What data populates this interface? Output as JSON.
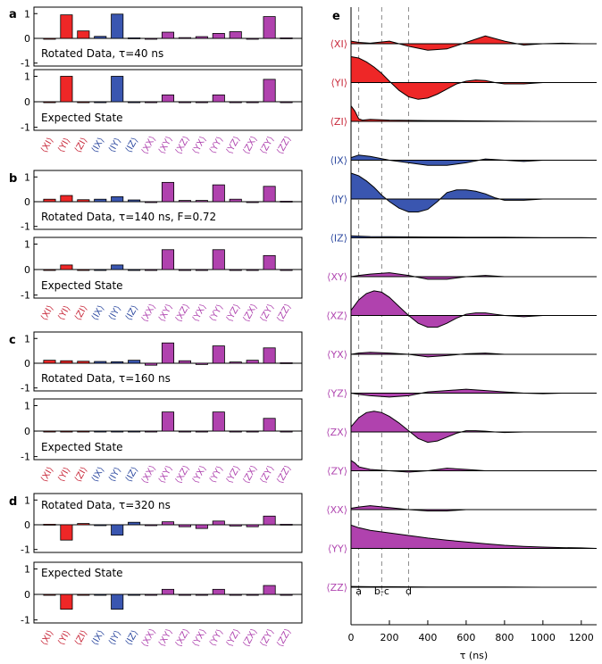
{
  "chart_data": [
    {
      "type": "bar",
      "panel": "a",
      "categories": [
        "⟨XI⟩",
        "⟨YI⟩",
        "⟨ZI⟩",
        "⟨IX⟩",
        "⟨IY⟩",
        "⟨IZ⟩",
        "⟨XX⟩",
        "⟨XY⟩",
        "⟨XZ⟩",
        "⟨YX⟩",
        "⟨YY⟩",
        "⟨YZ⟩",
        "⟨ZX⟩",
        "⟨ZY⟩",
        "⟨ZZ⟩"
      ],
      "ylim": [
        -1,
        1
      ],
      "yticks": [
        1,
        0,
        -1
      ],
      "series": [
        {
          "name": "Rotated Data, τ=40 ns",
          "values": [
            0.0,
            0.95,
            0.3,
            0.08,
            0.98,
            0.02,
            0.0,
            0.25,
            0.03,
            0.07,
            0.2,
            0.27,
            0.0,
            0.88,
            0.02
          ]
        },
        {
          "name": "Expected State",
          "values": [
            0,
            1.0,
            0,
            0,
            1.0,
            0,
            0,
            0.27,
            0,
            0,
            0.27,
            0,
            0,
            0.88,
            0
          ]
        }
      ]
    },
    {
      "type": "bar",
      "panel": "b",
      "categories": [
        "⟨XI⟩",
        "⟨YI⟩",
        "⟨ZI⟩",
        "⟨IX⟩",
        "⟨IY⟩",
        "⟨IZ⟩",
        "⟨XX⟩",
        "⟨XY⟩",
        "⟨XZ⟩",
        "⟨YX⟩",
        "⟨YY⟩",
        "⟨YZ⟩",
        "⟨ZX⟩",
        "⟨ZY⟩",
        "⟨ZZ⟩"
      ],
      "ylim": [
        -1,
        1
      ],
      "yticks": [
        1,
        0,
        -1
      ],
      "series": [
        {
          "name": "Rotated Data, τ=140 ns, F=0.72",
          "values": [
            0.1,
            0.25,
            0.08,
            0.1,
            0.2,
            0.07,
            0.0,
            0.78,
            0.05,
            0.05,
            0.68,
            0.1,
            0.0,
            0.62,
            0.02
          ]
        },
        {
          "name": "Expected State",
          "values": [
            0,
            0.18,
            0,
            0,
            0.18,
            0,
            0,
            0.78,
            0,
            0,
            0.78,
            0,
            0,
            0.55,
            0
          ]
        }
      ]
    },
    {
      "type": "bar",
      "panel": "c",
      "categories": [
        "⟨XI⟩",
        "⟨YI⟩",
        "⟨ZI⟩",
        "⟨IX⟩",
        "⟨IY⟩",
        "⟨IZ⟩",
        "⟨XX⟩",
        "⟨XY⟩",
        "⟨XZ⟩",
        "⟨YX⟩",
        "⟨YY⟩",
        "⟨YZ⟩",
        "⟨ZX⟩",
        "⟨ZY⟩",
        "⟨ZZ⟩"
      ],
      "ylim": [
        -1,
        1
      ],
      "yticks": [
        1,
        0,
        -1
      ],
      "series": [
        {
          "name": "Rotated Data, τ=160 ns",
          "values": [
            0.12,
            0.1,
            0.08,
            0.07,
            0.06,
            0.12,
            -0.08,
            0.82,
            0.1,
            -0.05,
            0.7,
            0.05,
            0.12,
            0.62,
            0.02
          ]
        },
        {
          "name": "Expected State",
          "values": [
            0,
            0,
            0,
            0,
            0,
            0,
            0,
            0.75,
            0,
            0,
            0.75,
            0,
            0,
            0.5,
            0
          ]
        }
      ]
    },
    {
      "type": "bar",
      "panel": "d",
      "categories": [
        "⟨XI⟩",
        "⟨YI⟩",
        "⟨ZI⟩",
        "⟨IX⟩",
        "⟨IY⟩",
        "⟨IZ⟩",
        "⟨XX⟩",
        "⟨XY⟩",
        "⟨XZ⟩",
        "⟨YX⟩",
        "⟨YY⟩",
        "⟨YZ⟩",
        "⟨ZX⟩",
        "⟨ZY⟩",
        "⟨ZZ⟩"
      ],
      "ylim": [
        -1,
        1
      ],
      "yticks": [
        1,
        0,
        -1
      ],
      "series": [
        {
          "name": "Rotated Data, τ=320 ns",
          "values": [
            0.02,
            -0.62,
            0.05,
            0.0,
            -0.42,
            0.1,
            0.0,
            0.12,
            -0.08,
            -0.15,
            0.15,
            -0.05,
            -0.08,
            0.35,
            0.02
          ]
        },
        {
          "name": "Expected State",
          "values": [
            0,
            -0.58,
            0,
            0,
            -0.58,
            0,
            0,
            0.2,
            0,
            0,
            0.2,
            0,
            0,
            0.35,
            0
          ]
        }
      ]
    },
    {
      "type": "area",
      "panel": "e",
      "xlabel": "τ (ns)",
      "xlim": [
        0,
        1280
      ],
      "xticks": [
        0,
        200,
        400,
        600,
        800,
        1000,
        1200
      ],
      "markers": [
        {
          "label": "a",
          "x": 40
        },
        {
          "label": "b-c",
          "x": 160
        },
        {
          "label": "d",
          "x": 300
        }
      ],
      "series": [
        {
          "name": "⟨XI⟩",
          "x": [
            0,
            40,
            100,
            200,
            300,
            400,
            500,
            600,
            700,
            800,
            900,
            1000,
            1100,
            1200,
            1280
          ],
          "y": [
            0.1,
            0.05,
            0.02,
            0.1,
            -0.1,
            -0.25,
            -0.2,
            0.05,
            0.3,
            0.1,
            -0.05,
            0.0,
            0.02,
            0.0,
            0.0
          ]
        },
        {
          "name": "⟨YI⟩",
          "x": [
            0,
            40,
            80,
            120,
            160,
            200,
            250,
            300,
            350,
            400,
            450,
            500,
            550,
            600,
            650,
            700,
            750,
            800,
            900,
            1000,
            1100,
            1200,
            1280
          ],
          "y": [
            1.0,
            0.95,
            0.8,
            0.6,
            0.35,
            0.05,
            -0.3,
            -0.55,
            -0.65,
            -0.6,
            -0.45,
            -0.25,
            -0.05,
            0.05,
            0.1,
            0.08,
            0.0,
            -0.05,
            -0.05,
            0.0,
            0.0,
            0.0,
            0.0
          ]
        },
        {
          "name": "⟨ZI⟩",
          "x": [
            0,
            20,
            40,
            60,
            100,
            200,
            400,
            600,
            800,
            1000,
            1280
          ],
          "y": [
            0.6,
            0.4,
            0.1,
            0.05,
            0.08,
            0.05,
            0.03,
            0.02,
            0.01,
            0.0,
            0.0
          ]
        },
        {
          "name": "⟨IX⟩",
          "x": [
            0,
            40,
            100,
            200,
            300,
            400,
            500,
            600,
            700,
            800,
            900,
            1000,
            1100,
            1200,
            1280
          ],
          "y": [
            0.1,
            0.2,
            0.15,
            0.0,
            -0.1,
            -0.2,
            -0.2,
            -0.1,
            0.05,
            0.0,
            -0.05,
            0.0,
            0.0,
            0.0,
            0.0
          ]
        },
        {
          "name": "⟨IY⟩",
          "x": [
            0,
            40,
            80,
            120,
            160,
            200,
            250,
            300,
            350,
            400,
            450,
            500,
            550,
            600,
            650,
            700,
            750,
            800,
            900,
            1000,
            1100,
            1200,
            1280
          ],
          "y": [
            1.0,
            0.9,
            0.7,
            0.45,
            0.15,
            -0.1,
            -0.35,
            -0.5,
            -0.5,
            -0.4,
            -0.1,
            0.25,
            0.35,
            0.35,
            0.3,
            0.2,
            0.05,
            -0.05,
            -0.05,
            0.0,
            0.0,
            0.0,
            0.0
          ]
        },
        {
          "name": "⟨IZ⟩",
          "x": [
            0,
            100,
            200,
            400,
            600,
            800,
            1000,
            1200,
            1280
          ],
          "y": [
            0.08,
            0.05,
            0.04,
            0.03,
            0.02,
            0.02,
            0.01,
            0.01,
            0.0
          ]
        },
        {
          "name": "⟨XY⟩",
          "x": [
            0,
            40,
            100,
            200,
            300,
            400,
            500,
            600,
            700,
            800,
            900,
            1000,
            1100,
            1200,
            1280
          ],
          "y": [
            0.0,
            0.05,
            0.1,
            0.15,
            0.05,
            -0.1,
            -0.1,
            0.0,
            0.05,
            0.0,
            0.0,
            0.0,
            0.0,
            0.0,
            0.0
          ]
        },
        {
          "name": "⟨XZ⟩",
          "x": [
            0,
            40,
            80,
            120,
            160,
            200,
            250,
            300,
            350,
            400,
            450,
            500,
            550,
            600,
            650,
            700,
            750,
            800,
            900,
            1000,
            1100,
            1200,
            1280
          ],
          "y": [
            0.2,
            0.6,
            0.85,
            0.95,
            0.9,
            0.7,
            0.35,
            0.0,
            -0.3,
            -0.45,
            -0.45,
            -0.3,
            -0.1,
            0.05,
            0.1,
            0.1,
            0.05,
            0.0,
            -0.05,
            0.0,
            0.0,
            0.0,
            0.0
          ]
        },
        {
          "name": "⟨YX⟩",
          "x": [
            0,
            40,
            100,
            200,
            300,
            400,
            500,
            600,
            700,
            800,
            900,
            1000,
            1100,
            1200,
            1280
          ],
          "y": [
            0.0,
            0.05,
            0.08,
            0.05,
            0.0,
            -0.1,
            -0.05,
            0.02,
            0.05,
            0.0,
            0.0,
            0.0,
            0.0,
            0.0,
            0.0
          ]
        },
        {
          "name": "⟨YZ⟩",
          "x": [
            0,
            40,
            100,
            200,
            300,
            400,
            500,
            600,
            700,
            800,
            900,
            1000,
            1100,
            1200,
            1280
          ],
          "y": [
            0.0,
            -0.05,
            -0.1,
            -0.15,
            -0.1,
            0.05,
            0.1,
            0.15,
            0.1,
            0.05,
            0.0,
            -0.02,
            0.0,
            0.0,
            0.0
          ]
        },
        {
          "name": "⟨ZX⟩",
          "x": [
            0,
            40,
            80,
            120,
            160,
            200,
            250,
            300,
            350,
            400,
            450,
            500,
            550,
            600,
            650,
            700,
            750,
            800,
            900,
            1000,
            1100,
            1200,
            1280
          ],
          "y": [
            0.2,
            0.55,
            0.75,
            0.8,
            0.75,
            0.6,
            0.35,
            0.05,
            -0.25,
            -0.4,
            -0.35,
            -0.2,
            -0.05,
            0.05,
            0.05,
            0.03,
            0.0,
            -0.02,
            0.0,
            0.0,
            0.0,
            0.0,
            0.0
          ]
        },
        {
          "name": "⟨ZY⟩",
          "x": [
            0,
            20,
            40,
            100,
            200,
            300,
            400,
            500,
            600,
            700,
            800,
            900,
            1000,
            1100,
            1200,
            1280
          ],
          "y": [
            0.4,
            0.3,
            0.15,
            0.05,
            0.0,
            -0.05,
            0.0,
            0.1,
            0.05,
            0.0,
            0.0,
            0.0,
            0.0,
            0.0,
            0.0,
            0.0
          ]
        },
        {
          "name": "⟨XX⟩",
          "x": [
            0,
            40,
            100,
            200,
            300,
            400,
            500,
            600,
            700,
            800,
            900,
            1000,
            1100,
            1200,
            1280
          ],
          "y": [
            0.05,
            0.1,
            0.15,
            0.08,
            0.0,
            -0.05,
            -0.05,
            0.0,
            0.0,
            0.0,
            0.0,
            0.0,
            0.0,
            0.0,
            0.0
          ]
        },
        {
          "name": "⟨YY⟩",
          "x": [
            0,
            40,
            100,
            200,
            300,
            400,
            500,
            600,
            700,
            800,
            900,
            1000,
            1100,
            1200,
            1280
          ],
          "y": [
            0.9,
            0.8,
            0.7,
            0.6,
            0.5,
            0.4,
            0.32,
            0.25,
            0.18,
            0.12,
            0.08,
            0.05,
            0.03,
            0.02,
            0.0
          ]
        },
        {
          "name": "⟨ZZ⟩",
          "x": [
            0,
            100,
            200,
            400,
            600,
            800,
            1000,
            1200,
            1280
          ],
          "y": [
            0.03,
            0.02,
            0.02,
            0.01,
            0.01,
            0.01,
            0.0,
            0.0,
            0.0
          ]
        }
      ]
    }
  ],
  "colors": {
    "red": "#ee2727",
    "blue": "#3a56b0",
    "magenta": "#b042ae",
    "red_label": "#c8283a",
    "blue_label": "#2e4aa0",
    "magenta_label": "#b046b0"
  }
}
